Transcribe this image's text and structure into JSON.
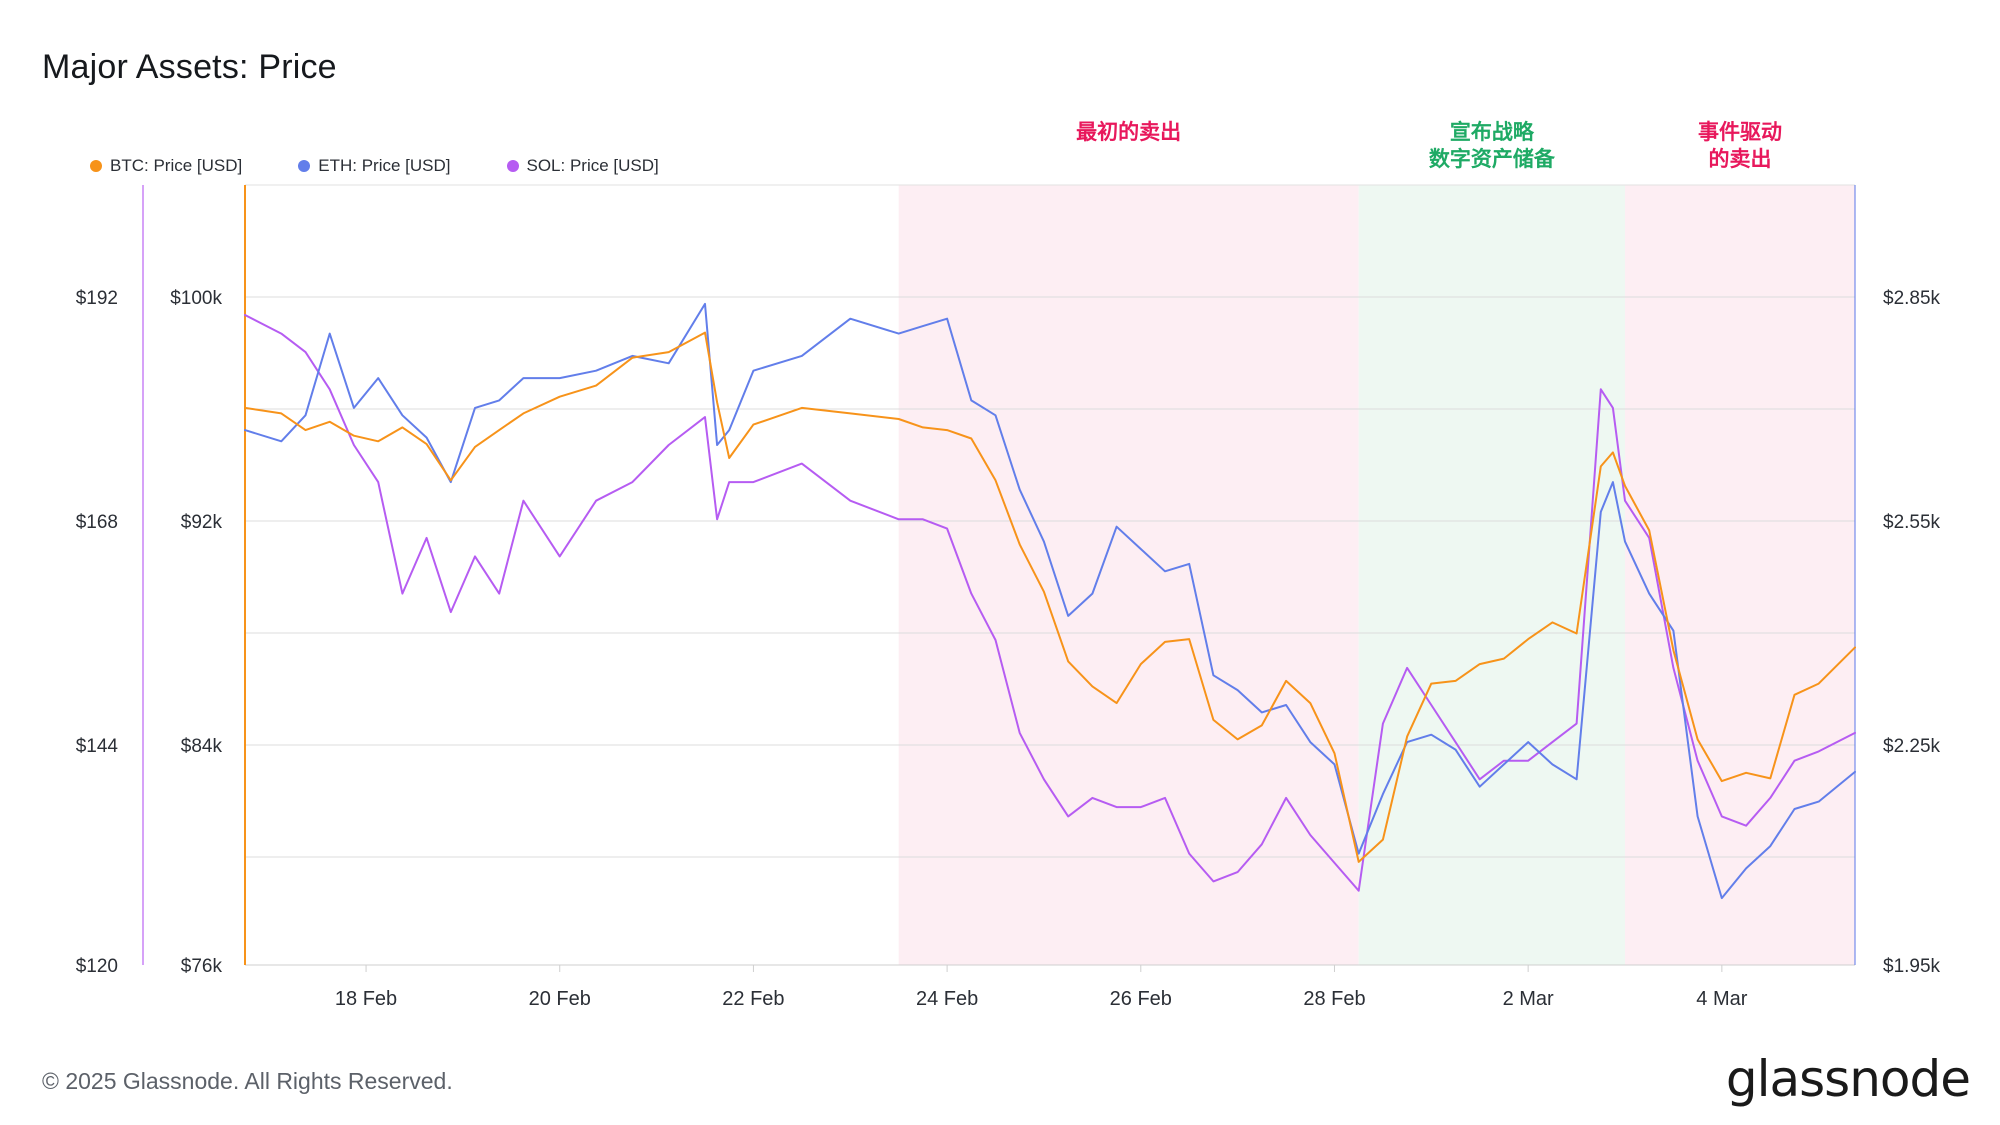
{
  "title": "Major Assets: Price",
  "footer": "© 2025 Glassnode. All Rights Reserved.",
  "brand": "glassnode",
  "colors": {
    "btc": "#f7931a",
    "eth": "#627eea",
    "sol": "#b65cf2",
    "pink_band": "#fdeef3",
    "green_band": "#eef8f2",
    "pink_text": "#e8185c",
    "green_text": "#1faa65"
  },
  "chart_data": {
    "type": "line",
    "x_ticks": [
      "18 Feb",
      "20 Feb",
      "22 Feb",
      "24 Feb",
      "26 Feb",
      "28 Feb",
      "2 Mar",
      "4 Mar"
    ],
    "x_range": [
      "2025-02-16T18:00",
      "2025-03-05T09:00"
    ],
    "axes": {
      "sol_left": {
        "ticks": [
          "$192",
          "$168",
          "$144",
          "$120"
        ],
        "range": [
          120,
          204
        ]
      },
      "btc_left": {
        "ticks": [
          "$100k",
          "$92k",
          "$84k",
          "$76k"
        ],
        "range": [
          76000,
          104000
        ]
      },
      "eth_right": {
        "ticks": [
          "$2.85k",
          "$2.55k",
          "$2.25k",
          "$1.95k"
        ],
        "range": [
          1950,
          3000
        ]
      }
    },
    "grid": "horizontal",
    "legend_position": "top-left",
    "legend": [
      "BTC: Price [USD]",
      "ETH: Price [USD]",
      "SOL: Price [USD]"
    ],
    "annotations": [
      {
        "label": [
          "最初的卖出"
        ],
        "from": "2025-02-23T12:00",
        "to": "2025-02-28T06:00",
        "style": "pink"
      },
      {
        "label": [
          "宣布战略",
          "数字资产储备"
        ],
        "from": "2025-02-28T06:00",
        "to": "2025-03-03T00:00",
        "style": "green"
      },
      {
        "label": [
          "事件驱动",
          "的卖出"
        ],
        "from": "2025-03-03T00:00",
        "to": "2025-03-05T09:00",
        "style": "pink"
      }
    ],
    "series": [
      {
        "name": "BTC: Price [USD]",
        "axis": "btc_left",
        "x": [
          "2025-02-16T18:00",
          "2025-02-17T03:00",
          "2025-02-17T09:00",
          "2025-02-17T15:00",
          "2025-02-17T21:00",
          "2025-02-18T03:00",
          "2025-02-18T09:00",
          "2025-02-18T15:00",
          "2025-02-18T21:00",
          "2025-02-19T03:00",
          "2025-02-19T09:00",
          "2025-02-19T15:00",
          "2025-02-20T00:00",
          "2025-02-20T09:00",
          "2025-02-20T18:00",
          "2025-02-21T03:00",
          "2025-02-21T12:00",
          "2025-02-21T15:00",
          "2025-02-21T18:00",
          "2025-02-22T00:00",
          "2025-02-22T12:00",
          "2025-02-23T00:00",
          "2025-02-23T12:00",
          "2025-02-23T18:00",
          "2025-02-24T00:00",
          "2025-02-24T06:00",
          "2025-02-24T12:00",
          "2025-02-24T18:00",
          "2025-02-25T00:00",
          "2025-02-25T06:00",
          "2025-02-25T12:00",
          "2025-02-25T18:00",
          "2025-02-26T00:00",
          "2025-02-26T06:00",
          "2025-02-26T12:00",
          "2025-02-26T18:00",
          "2025-02-27T00:00",
          "2025-02-27T06:00",
          "2025-02-27T12:00",
          "2025-02-27T18:00",
          "2025-02-28T00:00",
          "2025-02-28T06:00",
          "2025-02-28T12:00",
          "2025-02-28T18:00",
          "2025-03-01T00:00",
          "2025-03-01T06:00",
          "2025-03-01T12:00",
          "2025-03-01T18:00",
          "2025-03-02T00:00",
          "2025-03-02T06:00",
          "2025-03-02T12:00",
          "2025-03-02T18:00",
          "2025-03-02T21:00",
          "2025-03-03T00:00",
          "2025-03-03T06:00",
          "2025-03-03T12:00",
          "2025-03-03T18:00",
          "2025-03-04T00:00",
          "2025-03-04T06:00",
          "2025-03-04T12:00",
          "2025-03-04T18:00",
          "2025-03-05T00:00",
          "2025-03-05T09:00"
        ],
        "y": [
          96000,
          95800,
          95200,
          95500,
          95000,
          94800,
          95300,
          94700,
          93400,
          94600,
          95200,
          95800,
          96400,
          96800,
          97800,
          98000,
          98700,
          96200,
          94200,
          95400,
          96000,
          95800,
          95600,
          95300,
          95200,
          94900,
          93400,
          91100,
          89400,
          86900,
          86000,
          85400,
          86800,
          87600,
          87700,
          84800,
          84100,
          84600,
          86200,
          85400,
          83600,
          79700,
          80500,
          84200,
          86100,
          86200,
          86800,
          87000,
          87700,
          88300,
          87900,
          93900,
          94400,
          93200,
          91600,
          87300,
          84100,
          82600,
          82900,
          82700,
          85700,
          86100,
          87400
        ]
      },
      {
        "name": "ETH: Price [USD]",
        "axis": "eth_right",
        "x": [
          "2025-02-16T18:00",
          "2025-02-17T03:00",
          "2025-02-17T09:00",
          "2025-02-17T15:00",
          "2025-02-17T21:00",
          "2025-02-18T03:00",
          "2025-02-18T09:00",
          "2025-02-18T15:00",
          "2025-02-18T21:00",
          "2025-02-19T03:00",
          "2025-02-19T09:00",
          "2025-02-19T15:00",
          "2025-02-20T00:00",
          "2025-02-20T09:00",
          "2025-02-20T18:00",
          "2025-02-21T03:00",
          "2025-02-21T12:00",
          "2025-02-21T15:00",
          "2025-02-21T18:00",
          "2025-02-22T00:00",
          "2025-02-22T12:00",
          "2025-02-23T00:00",
          "2025-02-23T12:00",
          "2025-02-23T18:00",
          "2025-02-24T00:00",
          "2025-02-24T06:00",
          "2025-02-24T12:00",
          "2025-02-24T18:00",
          "2025-02-25T00:00",
          "2025-02-25T06:00",
          "2025-02-25T12:00",
          "2025-02-25T18:00",
          "2025-02-26T00:00",
          "2025-02-26T06:00",
          "2025-02-26T12:00",
          "2025-02-26T18:00",
          "2025-02-27T00:00",
          "2025-02-27T06:00",
          "2025-02-27T12:00",
          "2025-02-27T18:00",
          "2025-02-28T00:00",
          "2025-02-28T06:00",
          "2025-02-28T12:00",
          "2025-02-28T18:00",
          "2025-03-01T00:00",
          "2025-03-01T06:00",
          "2025-03-01T12:00",
          "2025-03-01T18:00",
          "2025-03-02T00:00",
          "2025-03-02T06:00",
          "2025-03-02T12:00",
          "2025-03-02T18:00",
          "2025-03-02T21:00",
          "2025-03-03T00:00",
          "2025-03-03T06:00",
          "2025-03-03T12:00",
          "2025-03-03T18:00",
          "2025-03-04T00:00",
          "2025-03-04T06:00",
          "2025-03-04T12:00",
          "2025-03-04T18:00",
          "2025-03-05T00:00",
          "2025-03-05T09:00"
        ],
        "y": [
          2670,
          2655,
          2690,
          2800,
          2700,
          2740,
          2690,
          2660,
          2600,
          2700,
          2710,
          2740,
          2740,
          2750,
          2770,
          2760,
          2840,
          2650,
          2670,
          2750,
          2770,
          2820,
          2800,
          2810,
          2820,
          2710,
          2690,
          2590,
          2520,
          2420,
          2450,
          2540,
          2510,
          2480,
          2490,
          2340,
          2320,
          2290,
          2300,
          2250,
          2220,
          2100,
          2180,
          2250,
          2260,
          2240,
          2190,
          2220,
          2250,
          2220,
          2200,
          2560,
          2600,
          2520,
          2450,
          2400,
          2150,
          2040,
          2080,
          2110,
          2160,
          2170,
          2210
        ]
      },
      {
        "name": "SOL: Price [USD]",
        "axis": "sol_left",
        "x": [
          "2025-02-16T18:00",
          "2025-02-17T03:00",
          "2025-02-17T09:00",
          "2025-02-17T15:00",
          "2025-02-17T21:00",
          "2025-02-18T03:00",
          "2025-02-18T09:00",
          "2025-02-18T15:00",
          "2025-02-18T21:00",
          "2025-02-19T03:00",
          "2025-02-19T09:00",
          "2025-02-19T15:00",
          "2025-02-20T00:00",
          "2025-02-20T09:00",
          "2025-02-20T18:00",
          "2025-02-21T03:00",
          "2025-02-21T12:00",
          "2025-02-21T15:00",
          "2025-02-21T18:00",
          "2025-02-22T00:00",
          "2025-02-22T12:00",
          "2025-02-23T00:00",
          "2025-02-23T12:00",
          "2025-02-23T18:00",
          "2025-02-24T00:00",
          "2025-02-24T06:00",
          "2025-02-24T12:00",
          "2025-02-24T18:00",
          "2025-02-25T00:00",
          "2025-02-25T06:00",
          "2025-02-25T12:00",
          "2025-02-25T18:00",
          "2025-02-26T00:00",
          "2025-02-26T06:00",
          "2025-02-26T12:00",
          "2025-02-26T18:00",
          "2025-02-27T00:00",
          "2025-02-27T06:00",
          "2025-02-27T12:00",
          "2025-02-27T18:00",
          "2025-02-28T00:00",
          "2025-02-28T06:00",
          "2025-02-28T12:00",
          "2025-02-28T18:00",
          "2025-03-01T00:00",
          "2025-03-01T06:00",
          "2025-03-01T12:00",
          "2025-03-01T18:00",
          "2025-03-02T00:00",
          "2025-03-02T06:00",
          "2025-03-02T12:00",
          "2025-03-02T18:00",
          "2025-03-02T21:00",
          "2025-03-03T00:00",
          "2025-03-03T06:00",
          "2025-03-03T12:00",
          "2025-03-03T18:00",
          "2025-03-04T00:00",
          "2025-03-04T06:00",
          "2025-03-04T12:00",
          "2025-03-04T18:00",
          "2025-03-05T00:00",
          "2025-03-05T09:00"
        ],
        "y": [
          190,
          188,
          186,
          182,
          176,
          172,
          160,
          166,
          158,
          164,
          160,
          170,
          164,
          170,
          172,
          176,
          179,
          168,
          172,
          172,
          174,
          170,
          168,
          168,
          167,
          160,
          155,
          145,
          140,
          136,
          138,
          137,
          137,
          138,
          132,
          129,
          130,
          133,
          138,
          134,
          131,
          128,
          146,
          152,
          148,
          144,
          140,
          142,
          142,
          144,
          146,
          182,
          180,
          170,
          166,
          152,
          142,
          136,
          135,
          138,
          142,
          143,
          145
        ]
      }
    ]
  }
}
